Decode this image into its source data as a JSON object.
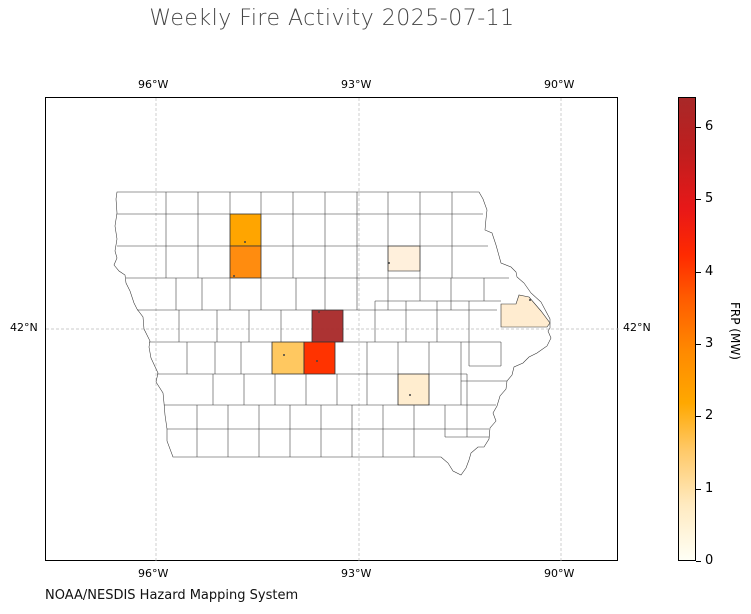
{
  "title": "Weekly Fire Activity 2025-07-11",
  "credit": "NOAA/NESDIS Hazard Mapping System",
  "axes": {
    "lon_ticks": [
      "96°W",
      "93°W",
      "90°W"
    ],
    "lat_ticks": [
      "42°N"
    ],
    "gridlines": true
  },
  "colorbar": {
    "label": "FRP (MW)",
    "ticks": [
      "0",
      "1",
      "2",
      "3",
      "4",
      "5",
      "6"
    ],
    "min": 0,
    "max": 6.4,
    "colors": [
      "#fffff5",
      "#ffeac0",
      "#ffc866",
      "#ffa800",
      "#ff8a00",
      "#ff5a00",
      "#ff2a00",
      "#c01e1e",
      "#a82828"
    ]
  },
  "region": "Iowa counties",
  "highlighted_counties": [
    {
      "frp": 2.1,
      "color": "#ffa500"
    },
    {
      "frp": 2.3,
      "color": "#ff8c0f"
    },
    {
      "frp": 0.3,
      "color": "#fff0dc"
    },
    {
      "frp": 0.4,
      "color": "#ffecd0"
    },
    {
      "frp": 6.3,
      "color": "#a82828"
    },
    {
      "frp": 1.4,
      "color": "#ffc860"
    },
    {
      "frp": 3.9,
      "color": "#ff3300"
    },
    {
      "frp": 0.3,
      "color": "#ffedcf"
    }
  ]
}
